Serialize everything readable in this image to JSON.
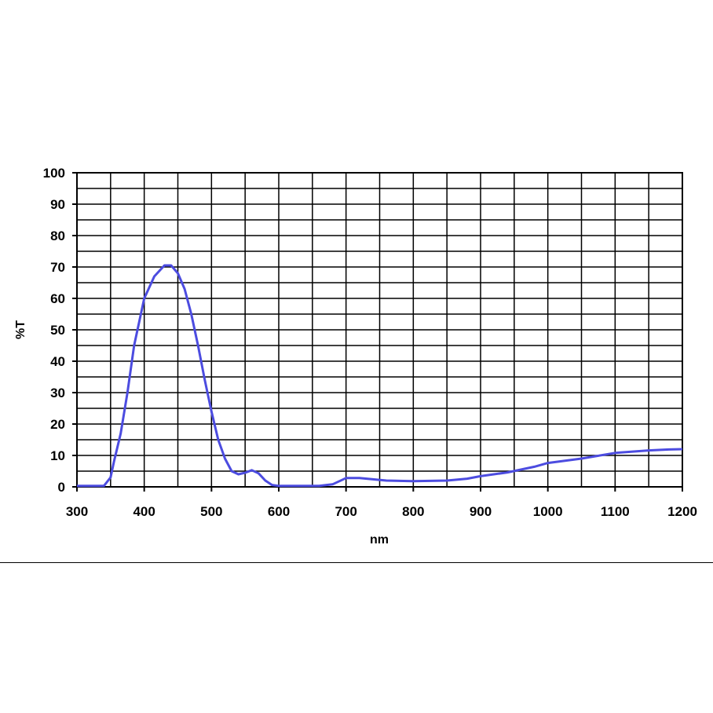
{
  "chart_data": {
    "type": "line",
    "title": "",
    "xlabel": "nm",
    "ylabel": "%T",
    "xlim": [
      300,
      1200
    ],
    "ylim": [
      0,
      100
    ],
    "x_ticks": [
      "300",
      "400",
      "500",
      "600",
      "700",
      "800",
      "900",
      "1000",
      "1100",
      "1200"
    ],
    "y_ticks": [
      "0",
      "10",
      "20",
      "30",
      "40",
      "50",
      "60",
      "70",
      "80",
      "90",
      "100"
    ],
    "grid": true,
    "line_color": "#4c4ce0",
    "series": [
      {
        "x": [
          300,
          340,
          350,
          355,
          365,
          375,
          385,
          400,
          415,
          430,
          440,
          450,
          460,
          470,
          480,
          490,
          500,
          510,
          520,
          530,
          540,
          550,
          560,
          570,
          580,
          590,
          600,
          620,
          660,
          680,
          700,
          720,
          760,
          800,
          850,
          880,
          900,
          940,
          980,
          1000,
          1050,
          1100,
          1150,
          1180,
          1200
        ],
        "values": [
          0.3,
          0.3,
          3,
          8,
          17,
          30,
          45,
          60,
          67,
          70.5,
          70.5,
          68,
          63,
          55,
          45,
          34,
          24,
          15,
          9,
          5,
          4,
          4.5,
          5.3,
          4.3,
          2,
          0.6,
          0.3,
          0.3,
          0.3,
          0.8,
          2.8,
          2.8,
          2,
          1.8,
          2,
          2.6,
          3.4,
          4.6,
          6.4,
          7.6,
          9,
          10.8,
          11.6,
          11.9,
          12
        ]
      }
    ]
  }
}
